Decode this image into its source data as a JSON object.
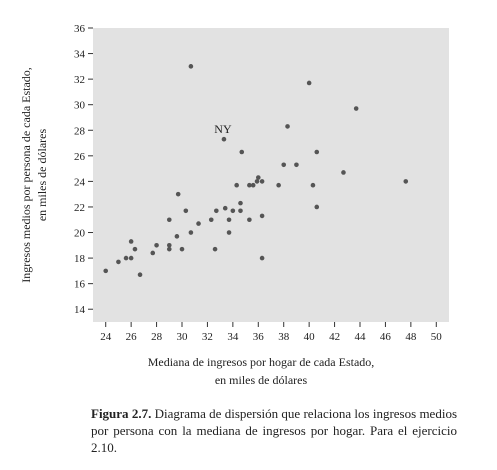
{
  "chart_data": {
    "type": "scatter",
    "xlabel_lines": [
      "Mediana de ingresos por hogar de cada Estado,",
      "en miles de dólares"
    ],
    "ylabel_lines": [
      "Ingresos medios por persona de cada Estado,",
      "en miles de dólares"
    ],
    "xlim": [
      23,
      51
    ],
    "ylim": [
      13,
      36
    ],
    "xticks": [
      24,
      26,
      28,
      30,
      32,
      34,
      36,
      38,
      40,
      42,
      44,
      46,
      48,
      50
    ],
    "yticks": [
      14,
      16,
      18,
      20,
      22,
      24,
      26,
      28,
      30,
      32,
      34,
      36
    ],
    "grid": false,
    "background": "#e2e2e2",
    "point_color": "#555555",
    "points": [
      {
        "x": 24.0,
        "y": 17.0
      },
      {
        "x": 25.0,
        "y": 17.7
      },
      {
        "x": 25.6,
        "y": 18.0
      },
      {
        "x": 26.0,
        "y": 18.0
      },
      {
        "x": 26.0,
        "y": 19.3
      },
      {
        "x": 26.3,
        "y": 18.7
      },
      {
        "x": 26.7,
        "y": 16.7
      },
      {
        "x": 27.7,
        "y": 18.4
      },
      {
        "x": 28.0,
        "y": 19.0
      },
      {
        "x": 29.0,
        "y": 18.7
      },
      {
        "x": 29.0,
        "y": 19.0
      },
      {
        "x": 29.0,
        "y": 21.0
      },
      {
        "x": 29.6,
        "y": 19.7
      },
      {
        "x": 29.7,
        "y": 23.0
      },
      {
        "x": 30.0,
        "y": 18.7
      },
      {
        "x": 30.3,
        "y": 21.7
      },
      {
        "x": 30.7,
        "y": 20.0
      },
      {
        "x": 30.7,
        "y": 33.0
      },
      {
        "x": 31.3,
        "y": 20.7
      },
      {
        "x": 32.3,
        "y": 21.0
      },
      {
        "x": 32.6,
        "y": 18.7
      },
      {
        "x": 32.7,
        "y": 21.7
      },
      {
        "x": 33.3,
        "y": 27.3
      },
      {
        "x": 33.4,
        "y": 21.9
      },
      {
        "x": 33.7,
        "y": 20.0
      },
      {
        "x": 33.7,
        "y": 21.0
      },
      {
        "x": 34.0,
        "y": 21.7
      },
      {
        "x": 34.3,
        "y": 23.7
      },
      {
        "x": 34.6,
        "y": 22.3
      },
      {
        "x": 34.6,
        "y": 21.7
      },
      {
        "x": 34.7,
        "y": 26.3
      },
      {
        "x": 35.3,
        "y": 23.7
      },
      {
        "x": 35.3,
        "y": 21.0
      },
      {
        "x": 35.6,
        "y": 23.7
      },
      {
        "x": 35.9,
        "y": 24.0
      },
      {
        "x": 36.0,
        "y": 24.3
      },
      {
        "x": 36.3,
        "y": 24.0
      },
      {
        "x": 36.3,
        "y": 21.3
      },
      {
        "x": 36.3,
        "y": 18.0
      },
      {
        "x": 37.6,
        "y": 23.7
      },
      {
        "x": 38.0,
        "y": 25.3
      },
      {
        "x": 38.3,
        "y": 28.3
      },
      {
        "x": 39.0,
        "y": 25.3
      },
      {
        "x": 40.0,
        "y": 31.7
      },
      {
        "x": 40.3,
        "y": 23.7
      },
      {
        "x": 40.6,
        "y": 26.3
      },
      {
        "x": 40.6,
        "y": 22.0
      },
      {
        "x": 42.7,
        "y": 24.7
      },
      {
        "x": 43.7,
        "y": 29.7
      },
      {
        "x": 47.6,
        "y": 24.0
      }
    ],
    "annotations": [
      {
        "text": "NY",
        "x": 33.3,
        "y": 27.3
      }
    ]
  },
  "caption": {
    "label": "Figura 2.7.",
    "text": " Diagrama de dispersión que relaciona los ingresos medios por persona con la mediana de ingresos por hogar. Para el ejercicio 2.10."
  }
}
